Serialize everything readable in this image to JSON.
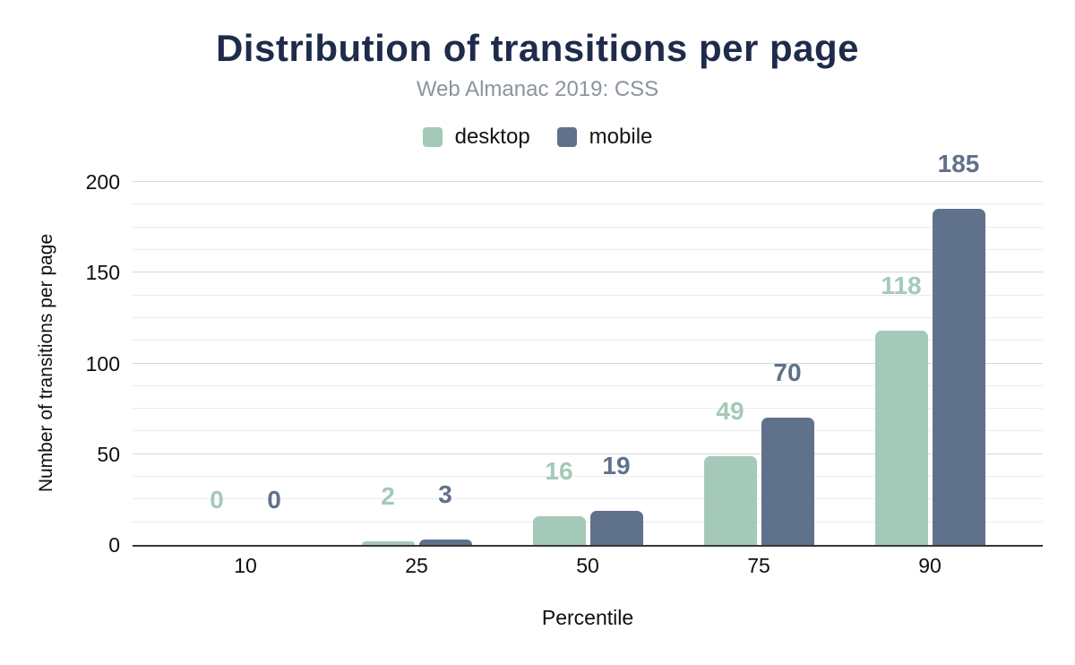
{
  "chart_data": {
    "type": "bar",
    "title": "Distribution of transitions per page",
    "subtitle": "Web Almanac 2019: CSS",
    "xlabel": "Percentile",
    "ylabel": "Number of transitions per page",
    "categories": [
      "10",
      "25",
      "50",
      "75",
      "90"
    ],
    "series": [
      {
        "name": "desktop",
        "color": "#a4c9b8",
        "values": [
          0,
          2,
          16,
          49,
          118
        ]
      },
      {
        "name": "mobile",
        "color": "#60718b",
        "values": [
          0,
          3,
          19,
          70,
          185
        ]
      }
    ],
    "ylim": [
      0,
      200
    ],
    "yticks": [
      0,
      50,
      100,
      150,
      200
    ],
    "minor_grid_step": 12.5,
    "grid": "horizontal",
    "legend_position": "top",
    "data_labels": true
  },
  "colors": {
    "title": "#1e2b4b",
    "subtitle": "#8b949e",
    "axis_line": "#383838",
    "gridline_minor": "#ebebeb",
    "gridline_major": "#d8d8d8"
  }
}
